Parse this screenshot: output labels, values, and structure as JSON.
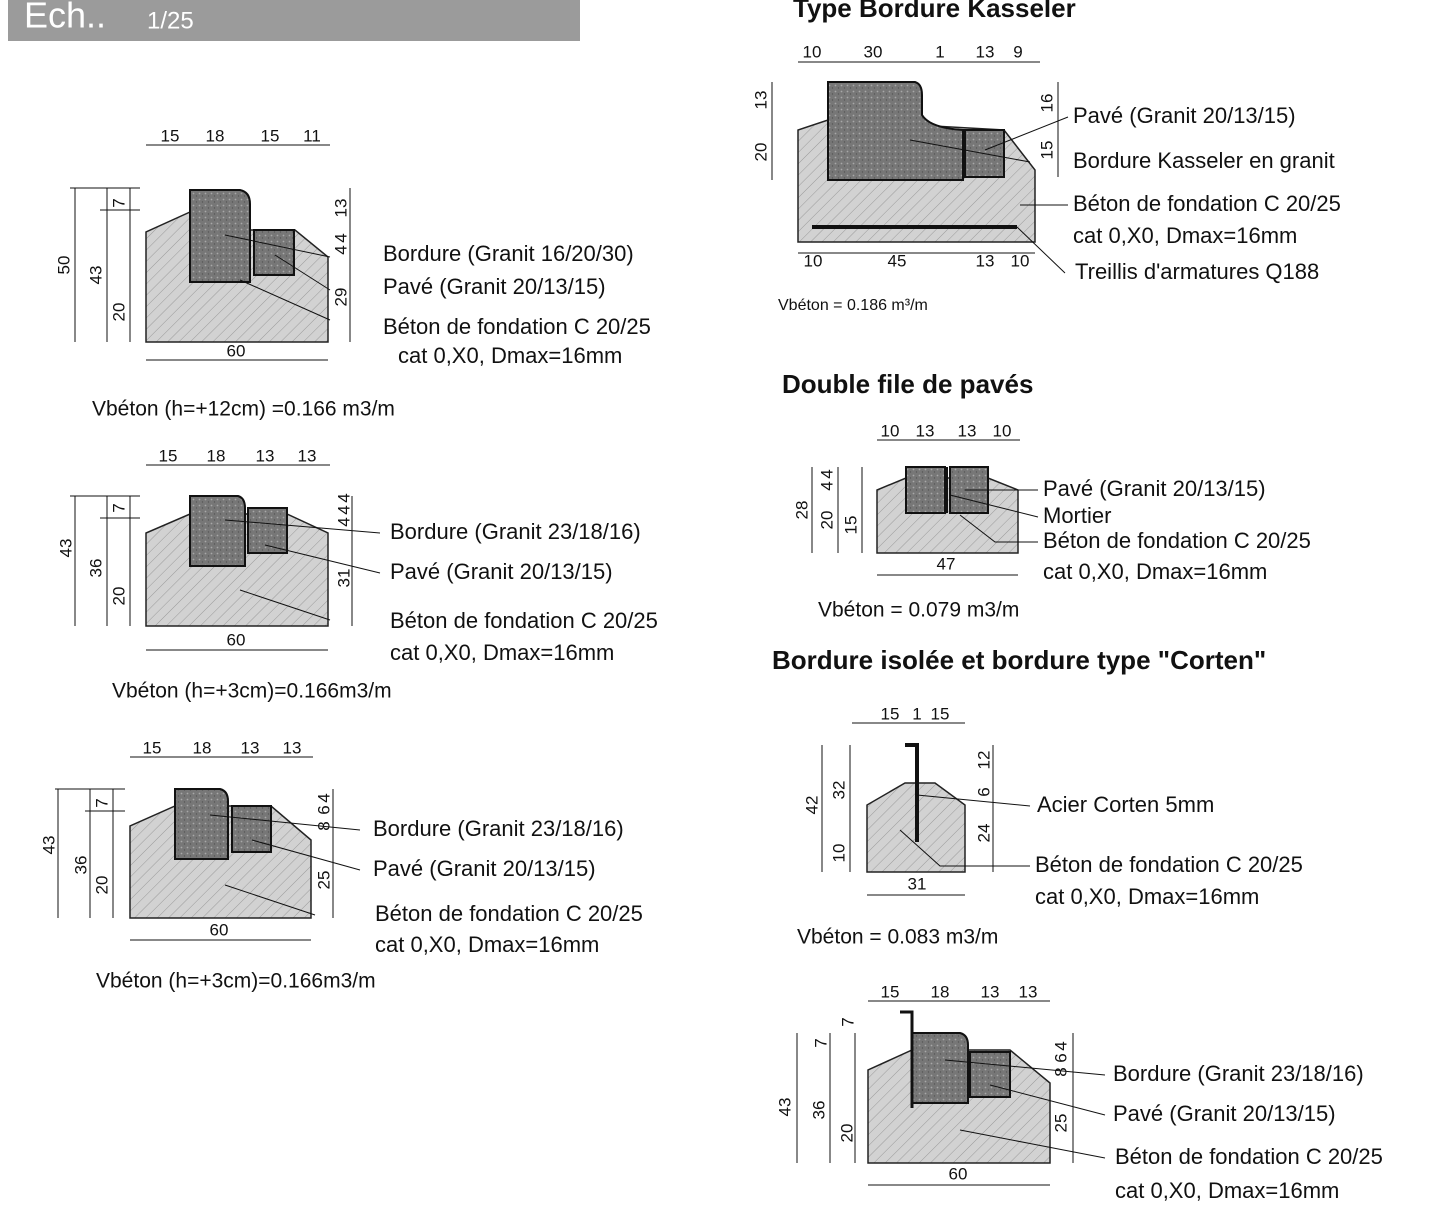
{
  "header": {
    "ech": "Ech..",
    "scale": "1/25"
  },
  "details": [
    {
      "dims": [
        15,
        18,
        15,
        11,
        50,
        43,
        7,
        20,
        13,
        4,
        4,
        29,
        60
      ],
      "labels": [
        "Bordure (Granit 16/20/30)",
        "Pavé (Granit 20/13/15)",
        "Béton de fondation C 20/25",
        "cat 0,X0, Dmax=16mm"
      ],
      "volume": "Vbéton (h=+12cm) =0.166 m3/m"
    },
    {
      "dims": [
        15,
        18,
        13,
        13,
        43,
        36,
        7,
        20,
        4,
        4,
        4,
        31,
        60
      ],
      "labels": [
        "Bordure (Granit 23/18/16)",
        "Pavé (Granit 20/13/15)",
        "Béton de fondation C 20/25",
        "cat 0,X0, Dmax=16mm"
      ],
      "volume": "Vbéton (h=+3cm)=0.166m3/m"
    },
    {
      "dims": [
        15,
        18,
        13,
        13,
        43,
        36,
        7,
        20,
        4,
        6,
        8,
        25,
        60
      ],
      "labels": [
        "Bordure (Granit 23/18/16)",
        "Pavé (Granit 20/13/15)",
        "Béton de fondation C 20/25",
        "cat 0,X0, Dmax=16mm"
      ],
      "volume": "Vbéton (h=+3cm)=0.166m3/m"
    },
    {
      "title": "Type Bordure Kasseler",
      "dims": [
        10,
        30,
        1,
        13,
        9,
        13,
        20,
        16,
        15,
        10,
        45,
        13,
        10
      ],
      "labels": [
        "Pavé (Granit 20/13/15)",
        "Bordure Kasseler en granit",
        "Béton de fondation C 20/25",
        "cat 0,X0, Dmax=16mm",
        "Treillis d'armatures Q188"
      ],
      "volume": "Vbéton = 0.186 m³/m"
    },
    {
      "title": "Double file de pavés",
      "dims": [
        10,
        13,
        13,
        10,
        28,
        20,
        4,
        4,
        15,
        47
      ],
      "labels": [
        "Pavé (Granit 20/13/15)",
        "Mortier",
        "Béton de fondation C 20/25",
        "cat 0,X0, Dmax=16mm"
      ],
      "volume": "Vbéton = 0.079 m3/m"
    },
    {
      "title": "Bordure isolée et bordure type \"Corten\"",
      "dims": [
        15,
        1,
        15,
        42,
        32,
        10,
        12,
        6,
        24,
        31
      ],
      "labels": [
        "Acier Corten 5mm",
        "Béton de fondation C 20/25",
        "cat 0,X0, Dmax=16mm"
      ],
      "volume": "Vbéton = 0.083 m3/m"
    },
    {
      "dims": [
        15,
        18,
        13,
        13,
        7,
        7,
        43,
        36,
        20,
        4,
        6,
        8,
        25,
        60
      ],
      "labels": [
        "Bordure (Granit 23/18/16)",
        "Pavé (Granit 20/13/15)",
        "Béton de fondation C 20/25",
        "cat 0,X0, Dmax=16mm"
      ]
    }
  ]
}
